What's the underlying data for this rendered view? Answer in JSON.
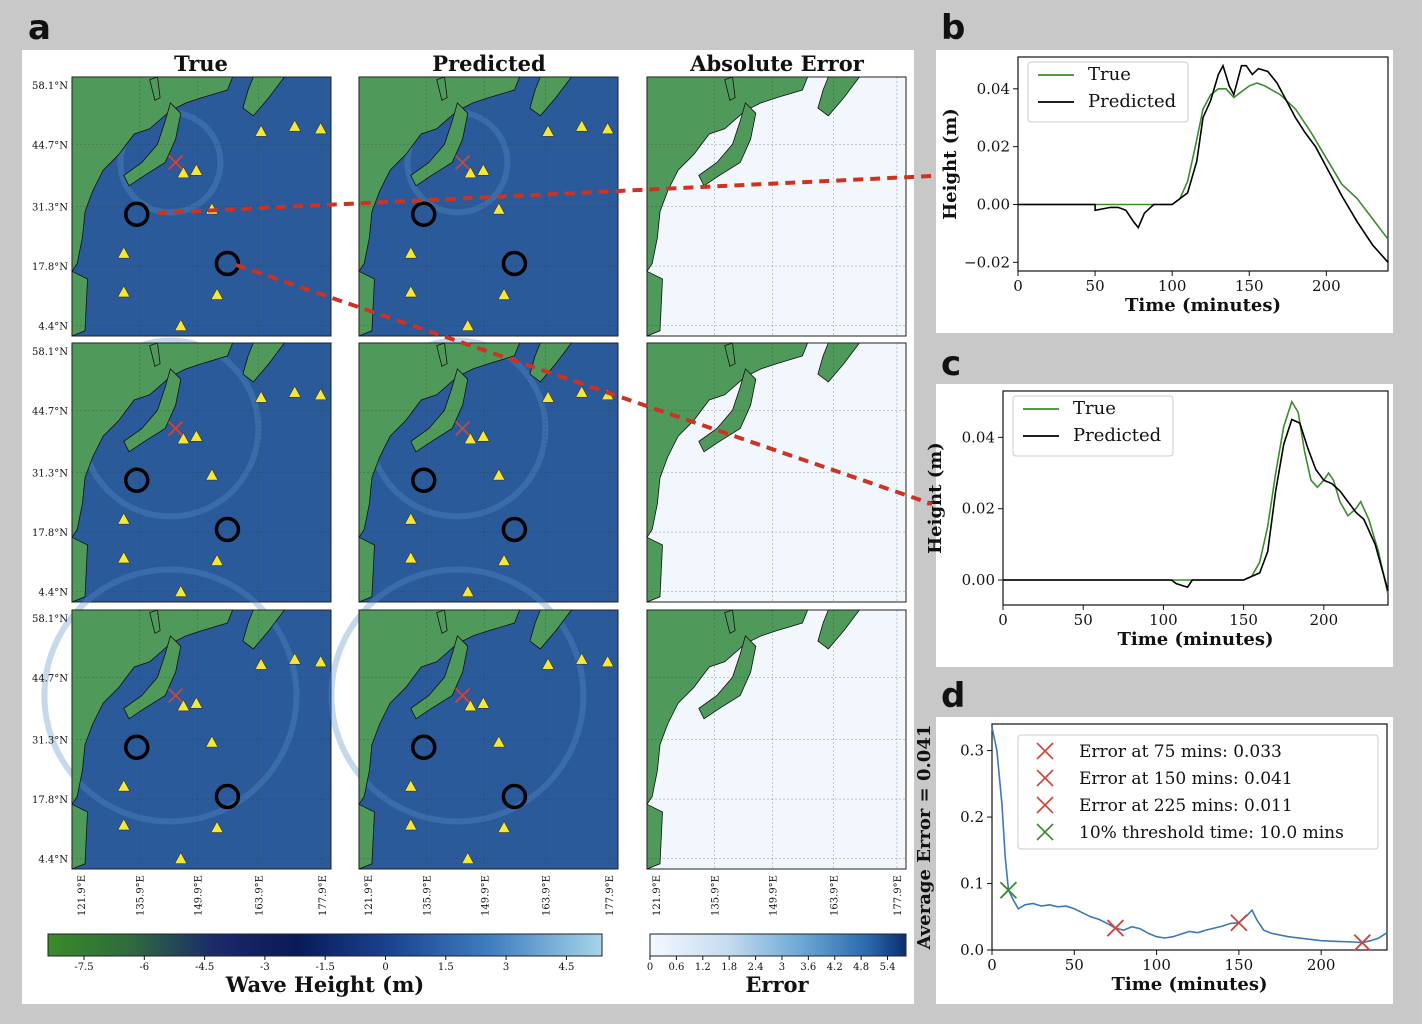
{
  "panel_labels": {
    "a": "a",
    "b": "b",
    "c": "c",
    "d": "d"
  },
  "maps": {
    "col_titles": [
      "True",
      "Predicted",
      "Absolute Error"
    ],
    "lat_ticks": [
      "58.1°N",
      "44.7°N",
      "31.3°N",
      "17.8°N",
      "4.4°N"
    ],
    "lon_ticks": [
      "121.9°E",
      "135.9°E",
      "149.9°E",
      "163.9°E",
      "177.9°E"
    ],
    "wave_colorbar": {
      "label": "Wave Height (m)",
      "ticks": [
        "-7.5",
        "-6",
        "-4.5",
        "-3",
        "-1.5",
        "0",
        "1.5",
        "3",
        "4.5"
      ]
    },
    "error_colorbar": {
      "label": "Error",
      "ticks": [
        "0",
        "0.6",
        "1.2",
        "1.8",
        "2.4",
        "3",
        "3.6",
        "4.2",
        "4.8",
        "5.4"
      ]
    },
    "colors": {
      "ocean": "#2a5a9a",
      "land": "#4f9a5a",
      "station": "#f5e63a",
      "error_bg": "#f2f7fd",
      "epicenter": "#d0443a",
      "link": "#cc3322"
    }
  },
  "chart_data": [
    {
      "id": "b",
      "type": "line",
      "xlabel": "Time (minutes)",
      "ylabel": "Height (m)",
      "xlim": [
        0,
        240
      ],
      "ylim": [
        -0.023,
        0.051
      ],
      "xticks": [
        0,
        50,
        100,
        150,
        200
      ],
      "yticks": [
        -0.02,
        0.0,
        0.02,
        0.04
      ],
      "ytick_labels": [
        "−0.02",
        "0.00",
        "0.02",
        "0.04"
      ],
      "legend": "top-left",
      "series": [
        {
          "name": "True",
          "color": "#3c8c2c",
          "points": [
            [
              0,
              0
            ],
            [
              100,
              0
            ],
            [
              105,
              0.002
            ],
            [
              110,
              0.008
            ],
            [
              115,
              0.02
            ],
            [
              120,
              0.033
            ],
            [
              125,
              0.038
            ],
            [
              130,
              0.04
            ],
            [
              135,
              0.04
            ],
            [
              140,
              0.037
            ],
            [
              145,
              0.039
            ],
            [
              150,
              0.041
            ],
            [
              155,
              0.042
            ],
            [
              160,
              0.041
            ],
            [
              170,
              0.038
            ],
            [
              180,
              0.033
            ],
            [
              190,
              0.025
            ],
            [
              200,
              0.016
            ],
            [
              210,
              0.007
            ],
            [
              220,
              0.002
            ],
            [
              230,
              -0.005
            ],
            [
              240,
              -0.012
            ]
          ]
        },
        {
          "name": "Predicted",
          "color": "#000000",
          "points": [
            [
              0,
              0
            ],
            [
              50,
              0
            ],
            [
              50,
              -0.002
            ],
            [
              60,
              -0.001
            ],
            [
              65,
              -0.001
            ],
            [
              70,
              -0.002
            ],
            [
              75,
              -0.006
            ],
            [
              78,
              -0.008
            ],
            [
              82,
              -0.003
            ],
            [
              88,
              0
            ],
            [
              100,
              0
            ],
            [
              110,
              0.004
            ],
            [
              116,
              0.015
            ],
            [
              120,
              0.03
            ],
            [
              125,
              0.036
            ],
            [
              130,
              0.045
            ],
            [
              133,
              0.048
            ],
            [
              137,
              0.041
            ],
            [
              140,
              0.038
            ],
            [
              145,
              0.048
            ],
            [
              148,
              0.048
            ],
            [
              152,
              0.045
            ],
            [
              156,
              0.047
            ],
            [
              162,
              0.046
            ],
            [
              168,
              0.042
            ],
            [
              174,
              0.036
            ],
            [
              180,
              0.03
            ],
            [
              186,
              0.025
            ],
            [
              193,
              0.02
            ],
            [
              200,
              0.013
            ],
            [
              210,
              0.003
            ],
            [
              220,
              -0.006
            ],
            [
              230,
              -0.014
            ],
            [
              240,
              -0.02
            ]
          ]
        }
      ]
    },
    {
      "id": "c",
      "type": "line",
      "xlabel": "Time (minutes)",
      "ylabel": "Height (m)",
      "xlim": [
        0,
        240
      ],
      "ylim": [
        -0.007,
        0.053
      ],
      "xticks": [
        0,
        50,
        100,
        150,
        200
      ],
      "yticks": [
        0.0,
        0.02,
        0.04
      ],
      "ytick_labels": [
        "0.00",
        "0.02",
        "0.04"
      ],
      "legend": "top-left",
      "series": [
        {
          "name": "True",
          "color": "#3c8c2c",
          "points": [
            [
              0,
              0
            ],
            [
              150,
              0
            ],
            [
              155,
              0.001
            ],
            [
              160,
              0.005
            ],
            [
              165,
              0.015
            ],
            [
              170,
              0.03
            ],
            [
              175,
              0.043
            ],
            [
              180,
              0.05
            ],
            [
              184,
              0.047
            ],
            [
              188,
              0.036
            ],
            [
              192,
              0.028
            ],
            [
              196,
              0.026
            ],
            [
              200,
              0.028
            ],
            [
              203,
              0.03
            ],
            [
              206,
              0.028
            ],
            [
              210,
              0.022
            ],
            [
              215,
              0.018
            ],
            [
              220,
              0.02
            ],
            [
              223,
              0.022
            ],
            [
              228,
              0.017
            ],
            [
              234,
              0.008
            ],
            [
              240,
              -0.004
            ]
          ]
        },
        {
          "name": "Predicted",
          "color": "#000000",
          "points": [
            [
              0,
              0
            ],
            [
              105,
              0
            ],
            [
              108,
              -0.001
            ],
            [
              115,
              -0.002
            ],
            [
              118,
              0.0
            ],
            [
              125,
              0.0
            ],
            [
              135,
              0.0
            ],
            [
              150,
              0.0
            ],
            [
              160,
              0.002
            ],
            [
              165,
              0.008
            ],
            [
              170,
              0.025
            ],
            [
              175,
              0.038
            ],
            [
              180,
              0.045
            ],
            [
              185,
              0.044
            ],
            [
              190,
              0.037
            ],
            [
              195,
              0.031
            ],
            [
              200,
              0.028
            ],
            [
              205,
              0.027
            ],
            [
              210,
              0.025
            ],
            [
              215,
              0.022
            ],
            [
              220,
              0.019
            ],
            [
              225,
              0.017
            ],
            [
              232,
              0.01
            ],
            [
              240,
              -0.003
            ]
          ]
        }
      ]
    },
    {
      "id": "d",
      "type": "line",
      "xlabel": "Time (minutes)",
      "ylabel": "Average Error = 0.041",
      "xlim": [
        0,
        240
      ],
      "ylim": [
        0,
        0.34
      ],
      "xticks": [
        0,
        50,
        100,
        150,
        200
      ],
      "yticks": [
        0.0,
        0.1,
        0.2,
        0.3
      ],
      "ytick_labels": [
        "0.0",
        "0.1",
        "0.2",
        "0.3"
      ],
      "legend": "top-right",
      "line": {
        "color": "#3d78b5",
        "points": [
          [
            0,
            0.335
          ],
          [
            3,
            0.3
          ],
          [
            6,
            0.22
          ],
          [
            8,
            0.14
          ],
          [
            10,
            0.09
          ],
          [
            13,
            0.075
          ],
          [
            16,
            0.062
          ],
          [
            20,
            0.068
          ],
          [
            25,
            0.07
          ],
          [
            30,
            0.066
          ],
          [
            35,
            0.068
          ],
          [
            40,
            0.065
          ],
          [
            45,
            0.066
          ],
          [
            50,
            0.062
          ],
          [
            55,
            0.056
          ],
          [
            60,
            0.05
          ],
          [
            65,
            0.046
          ],
          [
            70,
            0.04
          ],
          [
            75,
            0.033
          ],
          [
            80,
            0.03
          ],
          [
            85,
            0.035
          ],
          [
            90,
            0.032
          ],
          [
            95,
            0.025
          ],
          [
            100,
            0.02
          ],
          [
            105,
            0.018
          ],
          [
            110,
            0.02
          ],
          [
            115,
            0.024
          ],
          [
            120,
            0.028
          ],
          [
            125,
            0.026
          ],
          [
            130,
            0.03
          ],
          [
            135,
            0.033
          ],
          [
            140,
            0.036
          ],
          [
            145,
            0.04
          ],
          [
            150,
            0.041
          ],
          [
            155,
            0.052
          ],
          [
            158,
            0.06
          ],
          [
            161,
            0.045
          ],
          [
            165,
            0.03
          ],
          [
            170,
            0.025
          ],
          [
            180,
            0.02
          ],
          [
            190,
            0.017
          ],
          [
            200,
            0.014
          ],
          [
            210,
            0.013
          ],
          [
            220,
            0.012
          ],
          [
            225,
            0.011
          ],
          [
            230,
            0.014
          ],
          [
            235,
            0.018
          ],
          [
            240,
            0.026
          ]
        ]
      },
      "markers": [
        {
          "x": 75,
          "y": 0.033,
          "color": "#d0443a",
          "label": "Error at 75 mins: 0.033"
        },
        {
          "x": 150,
          "y": 0.041,
          "color": "#d0443a",
          "label": "Error at 150 mins: 0.041"
        },
        {
          "x": 225,
          "y": 0.011,
          "color": "#d0443a",
          "label": "Error at 225 mins: 0.011"
        },
        {
          "x": 10,
          "y": 0.09,
          "color": "#3c8c2c",
          "label": "10% threshold time: 10.0 mins"
        }
      ]
    }
  ]
}
